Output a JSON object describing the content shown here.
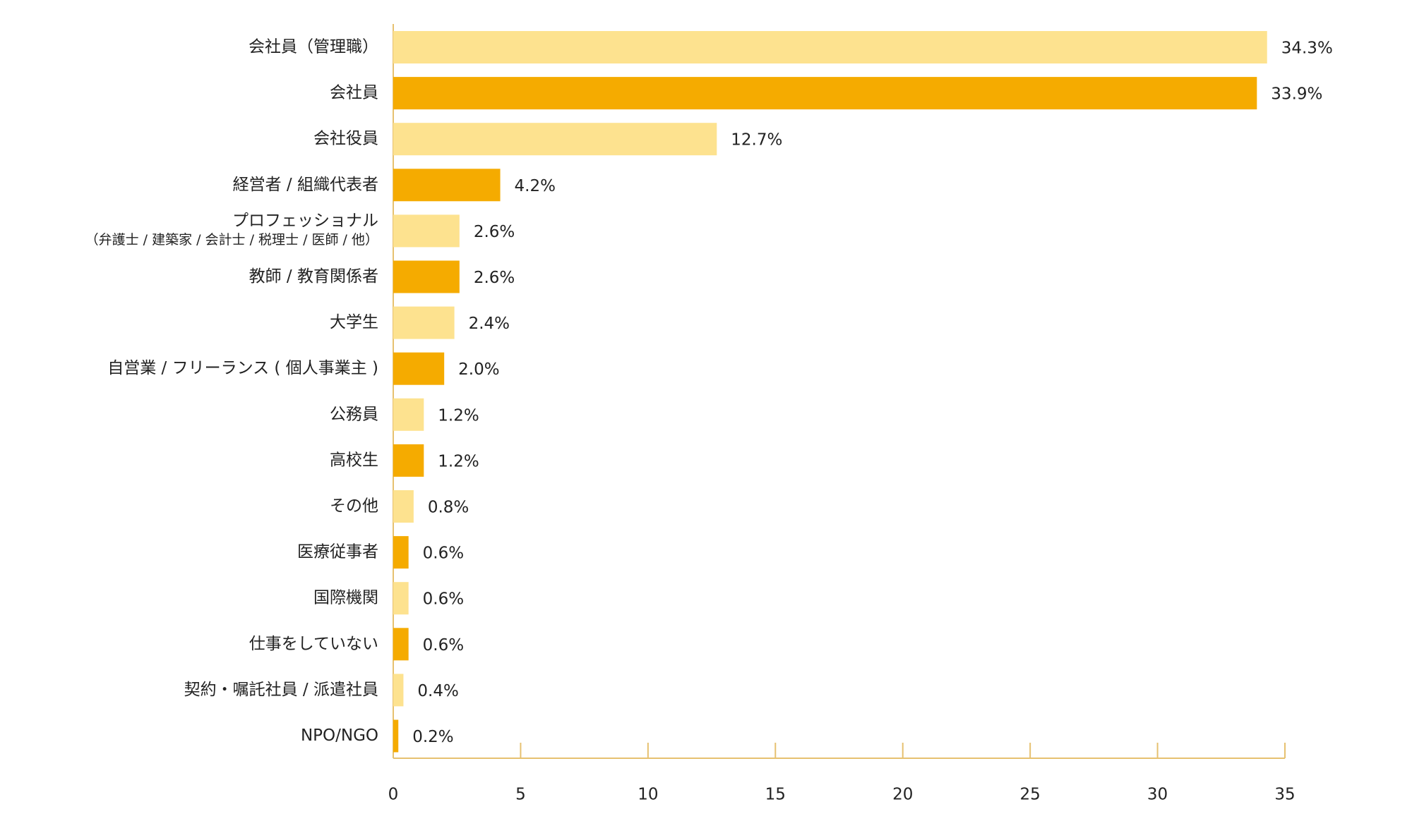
{
  "chart_data": {
    "type": "bar",
    "orientation": "horizontal",
    "categories": [
      "会社員（管理職）",
      "会社員",
      "会社役員",
      "経営者 / 組織代表者",
      [
        "プロフェッショナル",
        "（弁護士 / 建築家 / 会計士 / 税理士 / 医師 / 他）"
      ],
      "教師 / 教育関係者",
      "大学生",
      "自営業 / フリーランス ( 個人事業主 )",
      "公務員",
      "高校生",
      "その他",
      "医療従事者",
      "国際機関",
      "仕事をしていない",
      "契約・嘱託社員 / 派遣社員",
      "NPO/NGO"
    ],
    "values": [
      34.3,
      33.9,
      12.7,
      4.2,
      2.6,
      2.6,
      2.4,
      2.0,
      1.2,
      1.2,
      0.8,
      0.6,
      0.6,
      0.6,
      0.4,
      0.2
    ],
    "value_labels": [
      "34.3%",
      "33.9%",
      "12.7%",
      "4.2%",
      "2.6%",
      "2.6%",
      "2.4%",
      "2.0%",
      "1.2%",
      "1.2%",
      "0.8%",
      "0.6%",
      "0.6%",
      "0.6%",
      "0.4%",
      "0.2%"
    ],
    "colors": [
      "#fde28f",
      "#f5ab00"
    ],
    "xlim": [
      0,
      35
    ],
    "xticks": [
      0,
      5,
      10,
      15,
      20,
      25,
      30,
      35
    ],
    "grid": false
  }
}
